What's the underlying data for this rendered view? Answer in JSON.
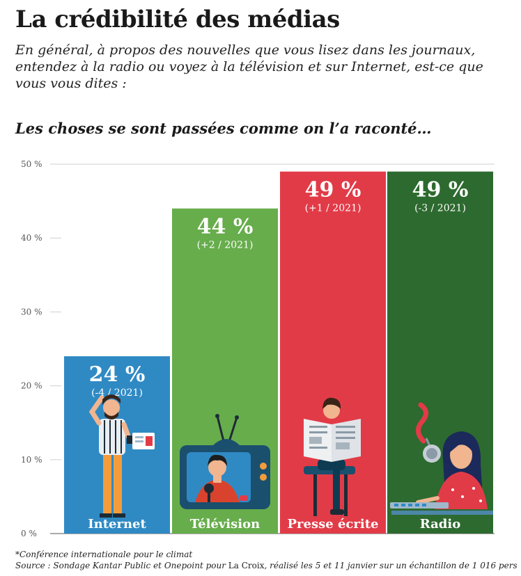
{
  "header": {
    "title": "La crédibilité des médias",
    "subtitle": "En général, à propos des nouvelles que vous lisez dans les journaux, entendez à la radio ou voyez à la télévision et sur Internet, est-ce que vous vous dites :",
    "question": "Les choses se sont passées comme on l’a raconté…"
  },
  "chart_data": {
    "type": "bar",
    "categories": [
      "Internet",
      "Télévision",
      "Presse écrite",
      "Radio"
    ],
    "values": [
      24,
      44,
      49,
      49
    ],
    "value_labels": [
      "24 %",
      "44 %",
      "49 %",
      "49 %"
    ],
    "change_labels": [
      "(-4 / 2021)",
      "(+2 / 2021)",
      "(+1 / 2021)",
      "(-3 / 2021)"
    ],
    "colors": [
      "#2f8ac4",
      "#67ad4c",
      "#e23b48",
      "#2d6a2f"
    ],
    "ylim": [
      0,
      50
    ],
    "yticks": [
      0,
      10,
      20,
      30,
      40,
      50
    ],
    "ytick_labels": [
      "0 %",
      "10 %",
      "20 %",
      "30 %",
      "40 %",
      "50 %"
    ],
    "grid": "top line only",
    "illustrations": [
      "man-with-phone-icon",
      "tv-presenter-icon",
      "newspaper-reader-icon",
      "radio-host-icon"
    ]
  },
  "footer": {
    "footnote": "*Conférence internationale pour le climat",
    "source_prefix": "Source : Sondage Kantar Public et Onepoint pour ",
    "source_outlet": "La Croix",
    "source_suffix": ", réalisé les 5 et 11 janvier sur un échantillon de 1 016 pers"
  }
}
